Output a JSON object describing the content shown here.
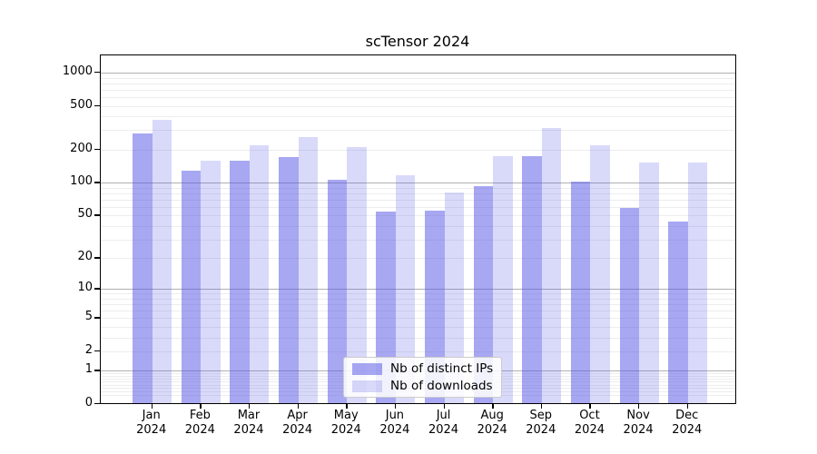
{
  "chart_data": {
    "type": "bar",
    "title": "scTensor 2024",
    "categories": [
      "Jan",
      "Feb",
      "Mar",
      "Apr",
      "May",
      "Jun",
      "Jul",
      "Aug",
      "Sep",
      "Oct",
      "Nov",
      "Dec"
    ],
    "x_year": "2024",
    "series": [
      {
        "name": "Nb of distinct IPs",
        "color": "rgba(80,80,230,0.5)",
        "values": [
          283,
          128,
          160,
          171,
          107,
          54,
          55,
          93,
          173,
          103,
          59,
          44
        ]
      },
      {
        "name": "Nb of downloads",
        "color": "rgba(80,80,230,0.22)",
        "values": [
          373,
          160,
          221,
          262,
          212,
          116,
          82,
          173,
          317,
          220,
          154,
          154
        ]
      }
    ],
    "yscale": "log1p",
    "yticks": [
      0,
      1,
      2,
      5,
      10,
      20,
      50,
      100,
      200,
      500,
      1000
    ],
    "major_gridlines": [
      1,
      10,
      100,
      1000
    ],
    "ylim": [
      0,
      1435
    ],
    "xlabel": "",
    "ylabel": "",
    "grid": "major and minor horizontal",
    "legend_position": "lower center"
  },
  "colors": {
    "background": "#ffffff",
    "axis": "#000000",
    "major_grid": "#b0b0b0",
    "minor_grid": "#ededed",
    "bar_dark": "rgba(80,80,230,0.5)",
    "bar_light": "rgba(80,80,230,0.22)",
    "legend_border": "#cccccc"
  }
}
